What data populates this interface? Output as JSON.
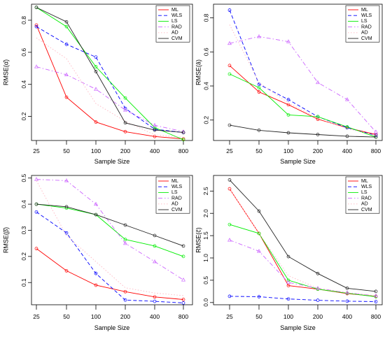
{
  "chart_data": [
    {
      "type": "line",
      "xlabel": "Sample Size",
      "ylabel": "RMSE(α̂)",
      "x": [
        "25",
        "50",
        "100",
        "200",
        "400",
        "800"
      ],
      "ylim": [
        0.05,
        0.9
      ],
      "yticks": [
        "0.2",
        "0.4",
        "0.6",
        "0.8"
      ],
      "grid": false,
      "legend_position": "top-right",
      "series": [
        {
          "name": "ML",
          "color": "#ff0000",
          "dash": "solid",
          "marker": "circle",
          "values": [
            0.77,
            0.32,
            0.165,
            0.105,
            0.075,
            0.06
          ]
        },
        {
          "name": "WLS",
          "color": "#0000ff",
          "dash": "dashed",
          "marker": "circle",
          "values": [
            0.76,
            0.65,
            0.57,
            0.25,
            0.12,
            0.1
          ]
        },
        {
          "name": "LS",
          "color": "#00ee00",
          "dash": "solid",
          "marker": "circle",
          "values": [
            0.88,
            0.76,
            0.51,
            0.315,
            0.13,
            0.055
          ]
        },
        {
          "name": "RAD",
          "color": "#cc66ff",
          "dash": "dashdot",
          "marker": "triangle",
          "values": [
            0.51,
            0.46,
            0.37,
            0.24,
            0.145,
            0.105
          ]
        },
        {
          "name": "AD",
          "color": "#ffb6c1",
          "dash": "dotted",
          "marker": "none",
          "values": [
            0.69,
            0.56,
            0.28,
            0.17,
            0.085,
            0.07
          ]
        },
        {
          "name": "CVM",
          "color": "#222222",
          "dash": "solid",
          "marker": "circle",
          "values": [
            0.88,
            0.79,
            0.48,
            0.16,
            0.115,
            0.1
          ]
        }
      ]
    },
    {
      "type": "line",
      "xlabel": "Sample Size",
      "ylabel": "RMSE(â)",
      "x": [
        "25",
        "50",
        "100",
        "200",
        "400",
        "800"
      ],
      "ylim": [
        0.08,
        0.88
      ],
      "yticks": [
        "0.2",
        "0.4",
        "0.6",
        "0.8"
      ],
      "grid": false,
      "legend_position": "top-right",
      "series": [
        {
          "name": "ML",
          "color": "#ff0000",
          "dash": "solid",
          "marker": "circle",
          "values": [
            0.52,
            0.365,
            0.29,
            0.205,
            0.155,
            0.115
          ]
        },
        {
          "name": "WLS",
          "color": "#0000ff",
          "dash": "dashed",
          "marker": "circle",
          "values": [
            0.845,
            0.41,
            0.32,
            0.22,
            0.155,
            0.11
          ]
        },
        {
          "name": "LS",
          "color": "#00ee00",
          "dash": "solid",
          "marker": "circle",
          "values": [
            0.47,
            0.39,
            0.23,
            0.22,
            0.16,
            0.1
          ]
        },
        {
          "name": "RAD",
          "color": "#cc66ff",
          "dash": "dashdot",
          "marker": "triangle",
          "values": [
            0.65,
            0.69,
            0.66,
            0.42,
            0.32,
            0.13
          ]
        },
        {
          "name": "AD",
          "color": "#ffb6c1",
          "dash": "dotted",
          "marker": "none",
          "values": [
            0.76,
            0.42,
            0.3,
            0.21,
            0.15,
            0.11
          ]
        },
        {
          "name": "CVM",
          "color": "#222222",
          "dash": "solid",
          "marker": "circle",
          "values": [
            0.17,
            0.14,
            0.125,
            0.115,
            0.105,
            0.1
          ]
        }
      ]
    },
    {
      "type": "line",
      "xlabel": "Sample Size",
      "ylabel": "RMSE(β̂)",
      "x": [
        "25",
        "50",
        "100",
        "200",
        "400",
        "800"
      ],
      "ylim": [
        0.015,
        0.51
      ],
      "yticks": [
        "0.1",
        "0.2",
        "0.3",
        "0.4",
        "0.5"
      ],
      "grid": false,
      "legend_position": "top-right",
      "series": [
        {
          "name": "ML",
          "color": "#ff0000",
          "dash": "solid",
          "marker": "circle",
          "values": [
            0.23,
            0.145,
            0.09,
            0.065,
            0.045,
            0.035
          ]
        },
        {
          "name": "WLS",
          "color": "#0000ff",
          "dash": "dashed",
          "marker": "circle",
          "values": [
            0.37,
            0.29,
            0.135,
            0.033,
            0.028,
            0.022
          ]
        },
        {
          "name": "LS",
          "color": "#00ee00",
          "dash": "solid",
          "marker": "circle",
          "values": [
            0.4,
            0.385,
            0.36,
            0.265,
            0.24,
            0.2
          ]
        },
        {
          "name": "RAD",
          "color": "#cc66ff",
          "dash": "dashdot",
          "marker": "triangle",
          "values": [
            0.495,
            0.49,
            0.4,
            0.25,
            0.18,
            0.11
          ]
        },
        {
          "name": "AD",
          "color": "#ffb6c1",
          "dash": "dotted",
          "marker": "none",
          "values": [
            0.49,
            0.28,
            0.18,
            0.08,
            0.06,
            0.05
          ]
        },
        {
          "name": "CVM",
          "color": "#222222",
          "dash": "solid",
          "marker": "circle",
          "values": [
            0.4,
            0.39,
            0.36,
            0.32,
            0.28,
            0.24
          ]
        }
      ]
    },
    {
      "type": "line",
      "xlabel": "Sample Size",
      "ylabel": "RMSE(ĉ)",
      "x": [
        "25",
        "50",
        "100",
        "200",
        "400",
        "800"
      ],
      "ylim": [
        -0.05,
        2.85
      ],
      "yticks": [
        "0.0",
        "0.5",
        "1.0",
        "1.5",
        "2.0",
        "2.5"
      ],
      "grid": false,
      "legend_position": "top-right",
      "series": [
        {
          "name": "ML",
          "color": "#ff0000",
          "dash": "solid",
          "marker": "circle",
          "values": [
            2.55,
            1.55,
            0.38,
            0.3,
            0.2,
            0.14
          ]
        },
        {
          "name": "WLS",
          "color": "#0000ff",
          "dash": "dashed",
          "marker": "circle",
          "values": [
            0.14,
            0.13,
            0.08,
            0.05,
            0.03,
            0.02
          ]
        },
        {
          "name": "LS",
          "color": "#00ee00",
          "dash": "solid",
          "marker": "circle",
          "values": [
            1.75,
            1.55,
            0.5,
            0.3,
            0.21,
            0.13
          ]
        },
        {
          "name": "RAD",
          "color": "#cc66ff",
          "dash": "dashdot",
          "marker": "triangle",
          "values": [
            1.4,
            1.15,
            0.45,
            0.32,
            0.22,
            0.15
          ]
        },
        {
          "name": "AD",
          "color": "#ffb6c1",
          "dash": "dotted",
          "marker": "none",
          "values": [
            2.55,
            1.55,
            0.6,
            0.32,
            0.22,
            0.15
          ]
        },
        {
          "name": "CVM",
          "color": "#222222",
          "dash": "solid",
          "marker": "circle",
          "values": [
            2.75,
            2.05,
            1.03,
            0.65,
            0.32,
            0.25
          ]
        }
      ]
    }
  ]
}
